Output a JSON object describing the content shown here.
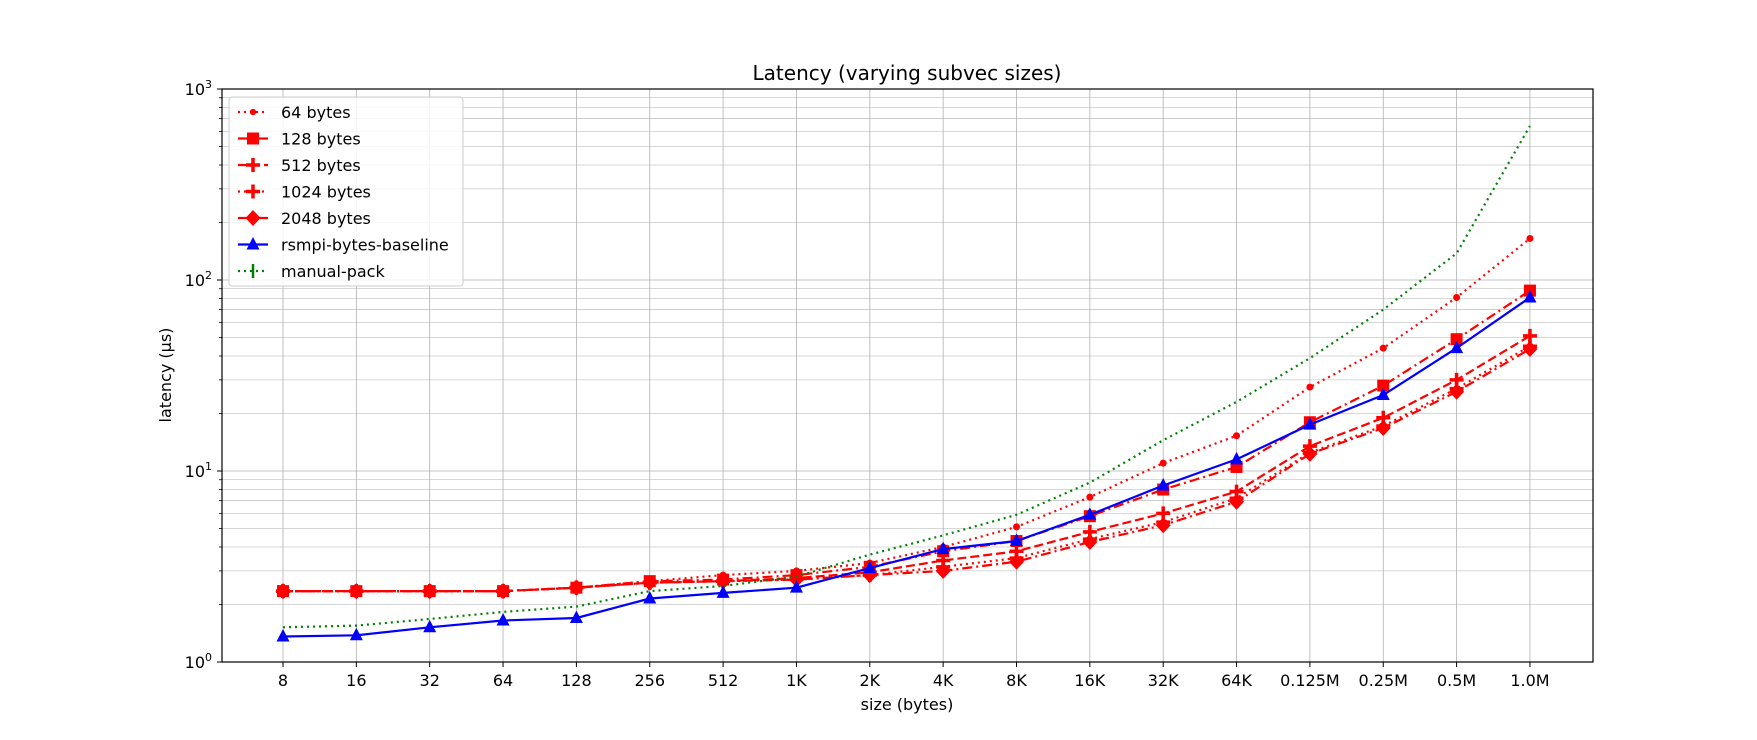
{
  "chart_data": {
    "type": "line",
    "title": "Latency (varying subvec sizes)",
    "xlabel": "size (bytes)",
    "ylabel": "latency (µs)",
    "yscale": "log",
    "ylim": [
      1,
      1000
    ],
    "yticks": [
      {
        "value": 1,
        "base": "10",
        "exp": "0"
      },
      {
        "value": 10,
        "base": "10",
        "exp": "1"
      },
      {
        "value": 100,
        "base": "10",
        "exp": "2"
      },
      {
        "value": 1000,
        "base": "10",
        "exp": "3"
      }
    ],
    "categories": [
      "8",
      "16",
      "32",
      "64",
      "128",
      "256",
      "512",
      "1K",
      "2K",
      "4K",
      "8K",
      "16K",
      "32K",
      "64K",
      "0.125M",
      "0.25M",
      "0.5M",
      "1.0M"
    ],
    "grid": true,
    "legend_position": "top-left",
    "series": [
      {
        "name": "64 bytes",
        "color": "#ff0000",
        "dash": "dotted",
        "marker": "dot",
        "values": [
          2.35,
          2.35,
          2.35,
          2.35,
          2.45,
          2.65,
          2.85,
          3.0,
          3.3,
          4.0,
          5.1,
          7.3,
          11.0,
          15.3,
          27.5,
          44.0,
          81.0,
          165.0
        ]
      },
      {
        "name": "128 bytes",
        "color": "#ff0000",
        "dash": "dashdot",
        "marker": "square",
        "values": [
          2.35,
          2.35,
          2.35,
          2.35,
          2.45,
          2.65,
          2.7,
          2.85,
          3.15,
          3.8,
          4.3,
          5.8,
          8.0,
          10.5,
          18.0,
          28.0,
          49.0,
          88.0
        ]
      },
      {
        "name": "512 bytes",
        "color": "#ff0000",
        "dash": "dashed",
        "marker": "plus",
        "values": [
          2.35,
          2.35,
          2.35,
          2.35,
          2.45,
          2.6,
          2.65,
          2.75,
          2.95,
          3.4,
          3.8,
          4.8,
          6.0,
          7.8,
          13.5,
          19.0,
          30.0,
          51.0
        ]
      },
      {
        "name": "1024 bytes",
        "color": "#ff0000",
        "dash": "dotted",
        "marker": "plus",
        "values": [
          2.35,
          2.35,
          2.35,
          2.35,
          2.45,
          2.6,
          2.65,
          2.7,
          2.85,
          3.15,
          3.5,
          4.4,
          5.4,
          7.2,
          12.5,
          17.2,
          27.0,
          45.0
        ]
      },
      {
        "name": "2048 bytes",
        "color": "#ff0000",
        "dash": "dashdot",
        "marker": "diamond",
        "values": [
          2.35,
          2.35,
          2.35,
          2.35,
          2.45,
          2.6,
          2.65,
          2.7,
          2.85,
          3.0,
          3.35,
          4.25,
          5.2,
          6.9,
          12.3,
          16.8,
          26.0,
          43.5
        ]
      },
      {
        "name": "rsmpi-bytes-baseline",
        "color": "#0000ff",
        "dash": "solid",
        "marker": "triangle",
        "values": [
          1.36,
          1.38,
          1.52,
          1.65,
          1.7,
          2.15,
          2.3,
          2.45,
          3.1,
          3.9,
          4.3,
          5.9,
          8.4,
          11.5,
          17.5,
          25.0,
          44.0,
          81.0
        ]
      },
      {
        "name": "manual-pack",
        "color": "#008000",
        "dash": "dotted",
        "marker": "vline",
        "values": [
          1.52,
          1.55,
          1.68,
          1.83,
          1.95,
          2.35,
          2.5,
          2.8,
          3.65,
          4.6,
          5.9,
          8.7,
          14.5,
          23.0,
          39.0,
          70.0,
          138.0,
          640.0
        ]
      }
    ]
  }
}
